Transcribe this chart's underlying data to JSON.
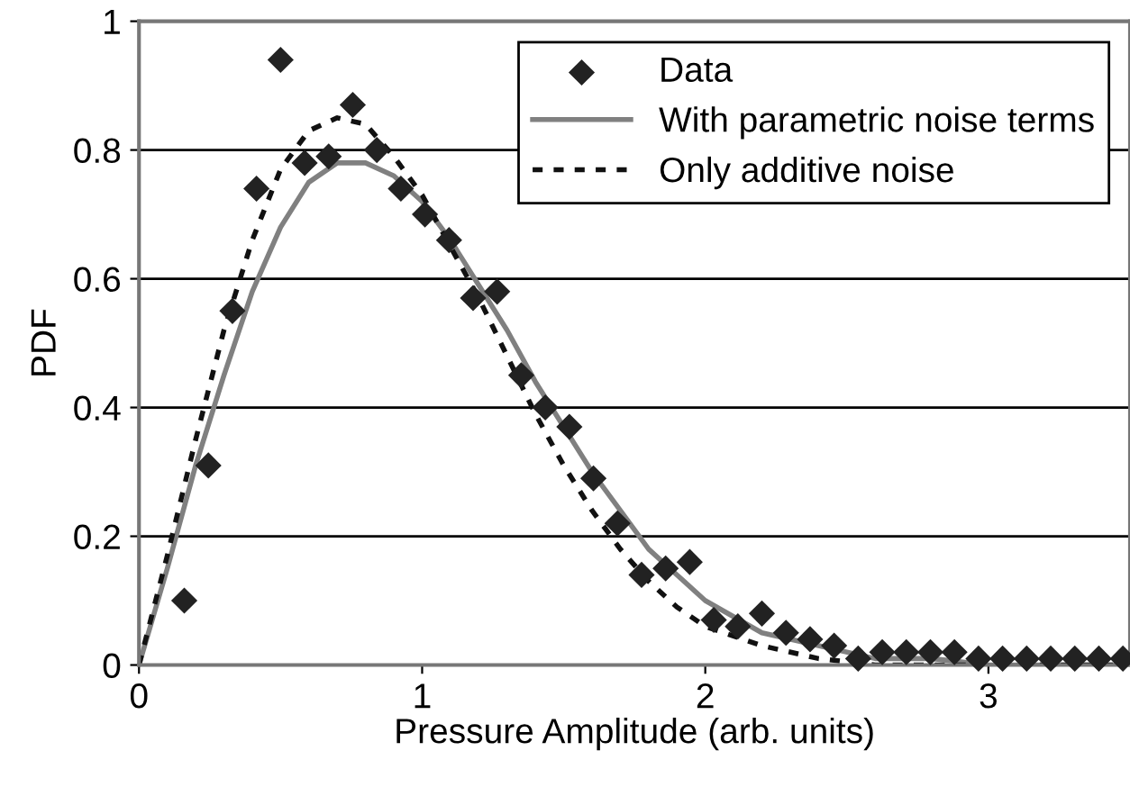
{
  "chart_data": {
    "type": "scatter",
    "xlabel": "Pressure Amplitude (arb. units)",
    "ylabel": "PDF",
    "xlim": [
      0,
      3.5
    ],
    "ylim": [
      0,
      1
    ],
    "xticks": [
      0,
      1,
      2,
      3
    ],
    "yticks": [
      0,
      0.2,
      0.4,
      0.6,
      0.8,
      1
    ],
    "grid": "y",
    "legend": "top right",
    "series": [
      {
        "name": "Data",
        "marker": "diamond",
        "color": "#222222",
        "x": [
          0.16,
          0.245,
          0.33,
          0.415,
          0.5,
          0.585,
          0.67,
          0.755,
          0.84,
          0.925,
          1.01,
          1.095,
          1.18,
          1.265,
          1.35,
          1.435,
          1.52,
          1.605,
          1.69,
          1.775,
          1.86,
          1.945,
          2.03,
          2.115,
          2.2,
          2.285,
          2.37,
          2.455,
          2.54,
          2.625,
          2.71,
          2.795,
          2.88,
          2.965,
          3.05,
          3.135,
          3.22,
          3.305,
          3.39,
          3.475
        ],
        "values": [
          0.1,
          0.31,
          0.55,
          0.74,
          0.94,
          0.78,
          0.79,
          0.87,
          0.8,
          0.74,
          0.7,
          0.66,
          0.57,
          0.58,
          0.45,
          0.4,
          0.37,
          0.29,
          0.22,
          0.14,
          0.15,
          0.16,
          0.07,
          0.06,
          0.08,
          0.05,
          0.04,
          0.03,
          0.01,
          0.02,
          0.02,
          0.02,
          0.02,
          0.01,
          0.01,
          0.01,
          0.01,
          0.01,
          0.01,
          0.01
        ]
      },
      {
        "name": "With parametric noise terms",
        "type": "line",
        "line_style": "solid",
        "color": "#808080",
        "x": [
          0,
          0.1,
          0.2,
          0.3,
          0.4,
          0.5,
          0.6,
          0.7,
          0.8,
          0.9,
          1.0,
          1.1,
          1.2,
          1.3,
          1.4,
          1.5,
          1.6,
          1.7,
          1.8,
          1.9,
          2.0,
          2.2,
          2.4,
          2.6,
          2.8,
          3.0,
          3.5
        ],
        "values": [
          0,
          0.15,
          0.31,
          0.45,
          0.58,
          0.68,
          0.75,
          0.78,
          0.78,
          0.76,
          0.72,
          0.66,
          0.59,
          0.52,
          0.44,
          0.37,
          0.3,
          0.24,
          0.18,
          0.14,
          0.1,
          0.05,
          0.03,
          0.01,
          0.01,
          0.0,
          0
        ]
      },
      {
        "name": "Only additive noise",
        "type": "line",
        "line_style": "dotted",
        "color": "#111111",
        "x": [
          0,
          0.1,
          0.2,
          0.3,
          0.4,
          0.5,
          0.6,
          0.7,
          0.8,
          0.9,
          1.0,
          1.1,
          1.2,
          1.3,
          1.4,
          1.5,
          1.6,
          1.7,
          1.8,
          1.9,
          2.0,
          2.2,
          2.4,
          2.6,
          2.8,
          3.0,
          3.5
        ],
        "values": [
          0,
          0.17,
          0.35,
          0.52,
          0.66,
          0.77,
          0.83,
          0.85,
          0.84,
          0.79,
          0.73,
          0.65,
          0.57,
          0.48,
          0.39,
          0.31,
          0.24,
          0.18,
          0.13,
          0.09,
          0.06,
          0.03,
          0.01,
          0.0,
          0,
          0,
          0
        ]
      }
    ]
  }
}
